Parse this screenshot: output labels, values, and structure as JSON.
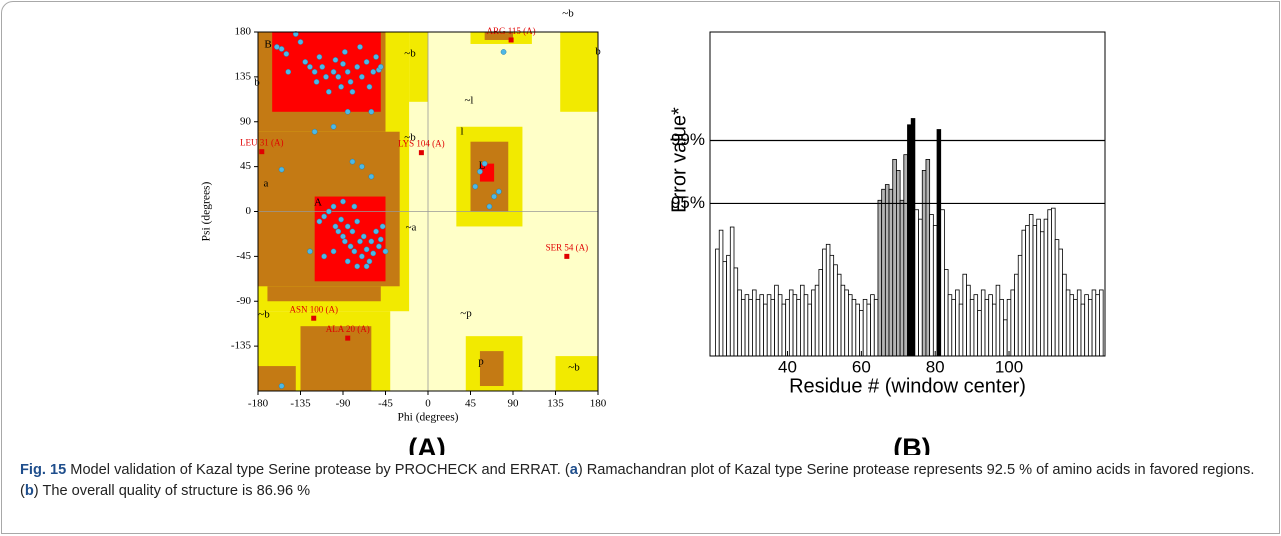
{
  "chart_data": [
    {
      "type": "scatter",
      "panel_label": "(A)",
      "xlabel": "Phi (degrees)",
      "ylabel": "Psi (degrees)",
      "xlim": [
        -180,
        180
      ],
      "ylim": [
        -180,
        180
      ],
      "xticks": [
        -180,
        -135,
        -90,
        -45,
        0,
        45,
        90,
        135,
        180
      ],
      "yticks": [
        -135,
        -90,
        -45,
        0,
        45,
        90,
        135,
        180
      ],
      "annotations": [
        "B",
        "b",
        "A",
        "a",
        "L",
        "l",
        "p",
        "~b",
        "~b",
        "~b",
        "~b",
        "~b",
        "~a",
        "~l",
        "~p",
        "b"
      ],
      "series": [
        {
          "color": "#4db8e6",
          "x": [
            -155,
            -150,
            -140,
            -135,
            -130,
            -125,
            -120,
            -118,
            -115,
            -112,
            -108,
            -105,
            -100,
            -98,
            -95,
            -92,
            -90,
            -88,
            -85,
            -82,
            -80,
            -75,
            -72,
            -70,
            -65,
            -62,
            -58,
            -55,
            -52,
            -50,
            -60,
            -85,
            -100,
            -160,
            -148,
            -80,
            -70,
            -60,
            -155,
            -120,
            -115,
            -110,
            -105,
            -100,
            -98,
            -95,
            -92,
            -90,
            -88,
            -85,
            -82,
            -80,
            -78,
            -75,
            -72,
            -70,
            -68,
            -65,
            -62,
            -60,
            -58,
            -55,
            -52,
            -50,
            -48,
            -45,
            -65,
            -75,
            -85,
            -100,
            -110,
            -125,
            -90,
            -78,
            55,
            60,
            50,
            70,
            65,
            75,
            -155,
            80
          ],
          "values": [
            163,
            158,
            178,
            170,
            150,
            145,
            140,
            130,
            155,
            145,
            135,
            120,
            140,
            152,
            135,
            125,
            148,
            160,
            140,
            130,
            120,
            145,
            165,
            135,
            150,
            125,
            140,
            155,
            142,
            145,
            100,
            100,
            85,
            165,
            140,
            50,
            45,
            35,
            42,
            80,
            -10,
            -5,
            0,
            5,
            -15,
            -20,
            -8,
            -25,
            -30,
            -15,
            -35,
            -20,
            -40,
            -10,
            -30,
            -45,
            -25,
            -38,
            -50,
            -30,
            -42,
            -20,
            -35,
            -28,
            -15,
            -40,
            -55,
            -55,
            -50,
            -40,
            -45,
            -40,
            10,
            5,
            40,
            48,
            25,
            15,
            5,
            20,
            -175,
            160
          ]
        },
        {
          "color": "#e00000",
          "x": [
            88,
            -176,
            -7,
            147,
            -121,
            -85
          ],
          "values": [
            172,
            60,
            59,
            -45,
            -107,
            -127
          ],
          "labels": [
            "ARG 115 (A)",
            "LEU 31 (A)",
            "LYS 104 (A)",
            "SER 54 (A)",
            "ASN 100 (A)",
            "ALA 20 (A)"
          ]
        }
      ]
    },
    {
      "type": "bar",
      "panel_label": "(B)",
      "xlabel": "Residue # (window center)",
      "ylabel": "Error value*",
      "xlim": [
        19,
        126
      ],
      "xticks": [
        40,
        60,
        80,
        100
      ],
      "ylim": [
        85.3,
        105.9
      ],
      "yticks": [
        {
          "value": 95,
          "label": "95%"
        },
        {
          "value": 99,
          "label": "99%"
        }
      ],
      "colors": [
        "#ffffff",
        "#b4b4b4",
        "#000000"
      ],
      "x": [
        21,
        22,
        23,
        24,
        25,
        26,
        27,
        28,
        29,
        30,
        31,
        32,
        33,
        34,
        35,
        36,
        37,
        38,
        39,
        40,
        41,
        42,
        43,
        44,
        45,
        46,
        47,
        48,
        49,
        50,
        51,
        52,
        53,
        54,
        55,
        56,
        57,
        58,
        59,
        60,
        61,
        62,
        63,
        64,
        65,
        66,
        67,
        68,
        69,
        70,
        71,
        72,
        73,
        74,
        75,
        76,
        77,
        78,
        79,
        80,
        81,
        82,
        83,
        84,
        85,
        86,
        87,
        88,
        89,
        90,
        91,
        92,
        93,
        94,
        95,
        96,
        97,
        98,
        99,
        100,
        101,
        102,
        103,
        104,
        105,
        106,
        107,
        108,
        109,
        110,
        111,
        112,
        113,
        114,
        115,
        116,
        117,
        118,
        119,
        120,
        121,
        122,
        123,
        124,
        125
      ],
      "values": [
        92.1,
        93.3,
        91.3,
        91.7,
        93.5,
        90.9,
        89.5,
        88.9,
        89.2,
        88.9,
        89.5,
        88.9,
        89.2,
        88.6,
        89.2,
        88.9,
        89.8,
        89.2,
        88.6,
        88.9,
        89.5,
        89.2,
        88.9,
        89.8,
        89.2,
        88.6,
        89.5,
        89.8,
        90.8,
        92.1,
        92.4,
        91.7,
        91.1,
        90.5,
        89.8,
        89.5,
        89.2,
        88.9,
        88.6,
        88.2,
        88.9,
        88.6,
        89.2,
        88.9,
        95.2,
        95.9,
        96.2,
        95.9,
        97.8,
        97.1,
        95.2,
        98.1,
        100.0,
        100.4,
        94.6,
        94.0,
        97.1,
        97.8,
        94.3,
        93.6,
        99.7,
        94.6,
        90.8,
        89.2,
        88.9,
        89.5,
        88.6,
        90.5,
        89.8,
        88.9,
        89.2,
        88.2,
        89.5,
        88.9,
        89.2,
        88.6,
        89.8,
        88.9,
        87.6,
        88.9,
        89.5,
        90.5,
        91.7,
        93.3,
        93.6,
        94.3,
        93.6,
        94.0,
        93.2,
        94.0,
        94.6,
        94.7,
        92.7,
        92.1,
        90.5,
        89.5,
        89.2,
        88.9,
        89.5,
        88.6,
        89.2,
        88.9,
        89.5,
        89.2,
        89.5
      ]
    }
  ],
  "caption": {
    "label": "Fig. 15",
    "parts": [
      " Model validation of Kazal type Serine protease by PROCHECK and ERRAT. (",
      "a",
      ") Ramachandran plot of Kazal type Serine protease represents 92.5 % of amino acids in favored regions. (",
      "b",
      ") The overall quality of structure is 86.96 %"
    ]
  }
}
